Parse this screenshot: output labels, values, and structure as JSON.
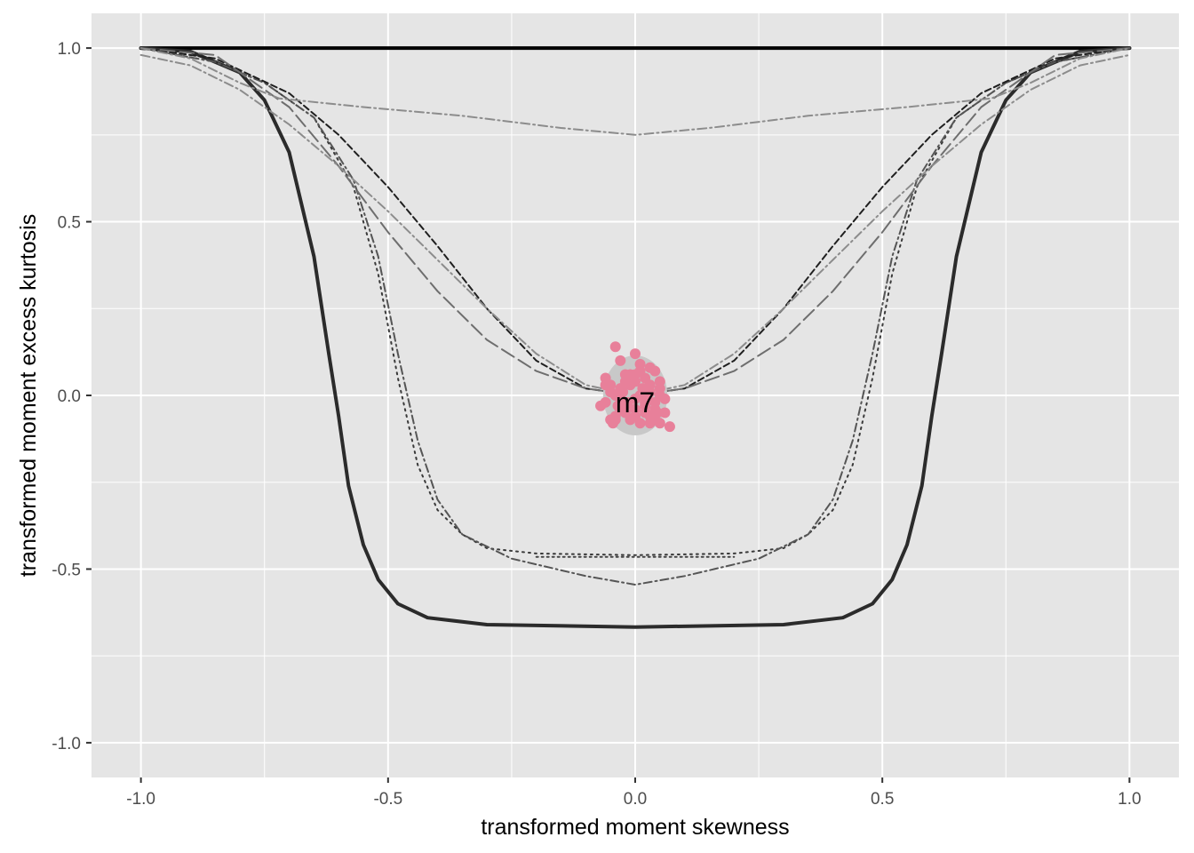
{
  "chart_data": {
    "type": "line",
    "title": "",
    "xlabel": "transformed moment skewness",
    "ylabel": "transformed moment excess kurtosis",
    "xlim": [
      -1.1,
      1.1
    ],
    "ylim": [
      -1.1,
      1.1
    ],
    "x_ticks": [
      -1.0,
      -0.5,
      0.0,
      0.5,
      1.0
    ],
    "x_tick_labels": [
      "-1.0",
      "-0.5",
      "0.0",
      "0.5",
      "1.0"
    ],
    "y_ticks": [
      1.0,
      0.5,
      0.0,
      -0.5,
      -1.0
    ],
    "y_tick_labels": [
      "1.0",
      "0.5",
      "0.0",
      "-0.5",
      "-1.0"
    ],
    "grid": true,
    "background": "#e5e5e5",
    "point_color": "#e8809a",
    "series": [
      {
        "style": "solid-thick",
        "color": "#000000",
        "x": [
          -1.0,
          1.0
        ],
        "y": [
          1.0,
          1.0
        ]
      },
      {
        "style": "solid-thick",
        "color": "#2b2b2b",
        "x": [
          -1.0,
          -0.9,
          -0.8,
          -0.75,
          -0.7,
          -0.65,
          -0.62,
          -0.6,
          -0.58,
          -0.55,
          -0.52,
          -0.48,
          -0.42,
          -0.3,
          0.0,
          0.3,
          0.42,
          0.48,
          0.52,
          0.55,
          0.58,
          0.6,
          0.62,
          0.65,
          0.7,
          0.75,
          0.8,
          0.9,
          1.0
        ],
        "y": [
          1.0,
          0.99,
          0.93,
          0.85,
          0.7,
          0.4,
          0.12,
          -0.06,
          -0.26,
          -0.43,
          -0.53,
          -0.6,
          -0.64,
          -0.66,
          -0.667,
          -0.66,
          -0.64,
          -0.6,
          -0.53,
          -0.43,
          -0.26,
          -0.06,
          0.12,
          0.4,
          0.7,
          0.85,
          0.93,
          0.99,
          1.0
        ]
      },
      {
        "style": "dotted",
        "color": "#3a3a3a",
        "x": [
          -1.0,
          -0.85,
          -0.75,
          -0.65,
          -0.57,
          -0.52,
          -0.48,
          -0.44,
          -0.4,
          -0.35,
          -0.3,
          -0.2,
          0.0,
          0.2,
          0.3,
          0.35,
          0.4,
          0.44,
          0.48,
          0.52,
          0.57,
          0.65,
          0.75,
          0.85,
          1.0
        ],
        "y": [
          1.0,
          0.96,
          0.9,
          0.8,
          0.6,
          0.35,
          0.05,
          -0.2,
          -0.33,
          -0.4,
          -0.44,
          -0.455,
          -0.46,
          -0.455,
          -0.44,
          -0.4,
          -0.33,
          -0.2,
          0.05,
          0.35,
          0.6,
          0.8,
          0.9,
          0.96,
          1.0
        ]
      },
      {
        "style": "dashdot",
        "color": "#555555",
        "x": [
          -1.0,
          -0.85,
          -0.75,
          -0.65,
          -0.57,
          -0.52,
          -0.48,
          -0.44,
          -0.4,
          -0.35,
          -0.25,
          -0.1,
          0.0,
          0.1,
          0.25,
          0.35,
          0.4,
          0.44,
          0.48,
          0.52,
          0.57,
          0.65,
          0.75,
          0.85,
          1.0
        ],
        "y": [
          1.0,
          0.96,
          0.9,
          0.8,
          0.62,
          0.4,
          0.12,
          -0.13,
          -0.3,
          -0.4,
          -0.47,
          -0.52,
          -0.545,
          -0.52,
          -0.47,
          -0.4,
          -0.3,
          -0.13,
          0.12,
          0.4,
          0.62,
          0.8,
          0.9,
          0.96,
          1.0
        ]
      },
      {
        "style": "dotted-long",
        "color": "#444444",
        "x": [
          -0.2,
          0.0,
          0.2
        ],
        "y": [
          -0.465,
          -0.465,
          -0.465
        ]
      },
      {
        "style": "dashed",
        "color": "#1f1f1f",
        "x": [
          -1.0,
          -0.85,
          -0.7,
          -0.6,
          -0.5,
          -0.4,
          -0.3,
          -0.2,
          -0.1,
          0.0,
          0.1,
          0.2,
          0.3,
          0.4,
          0.5,
          0.6,
          0.7,
          0.85,
          1.0
        ],
        "y": [
          1.0,
          0.97,
          0.87,
          0.75,
          0.6,
          0.43,
          0.25,
          0.1,
          0.02,
          0.0,
          0.02,
          0.1,
          0.25,
          0.43,
          0.6,
          0.75,
          0.87,
          0.97,
          1.0
        ]
      },
      {
        "style": "longdash",
        "color": "#6e6e6e",
        "x": [
          -1.0,
          -0.85,
          -0.7,
          -0.6,
          -0.5,
          -0.4,
          -0.3,
          -0.2,
          -0.1,
          0.0,
          0.1,
          0.2,
          0.3,
          0.4,
          0.5,
          0.6,
          0.7,
          0.85,
          1.0
        ],
        "y": [
          1.0,
          0.98,
          0.83,
          0.66,
          0.47,
          0.3,
          0.16,
          0.07,
          0.02,
          0.0,
          0.02,
          0.07,
          0.16,
          0.3,
          0.47,
          0.66,
          0.83,
          0.98,
          1.0
        ]
      },
      {
        "style": "dashdot-light",
        "color": "#8c8c8c",
        "x": [
          -1.0,
          -0.9,
          -0.8,
          -0.7,
          -0.6,
          -0.5,
          -0.4,
          -0.3,
          -0.2,
          -0.1,
          0.0,
          0.1,
          0.2,
          0.3,
          0.4,
          0.5,
          0.6,
          0.7,
          0.8,
          0.9,
          1.0
        ],
        "y": [
          0.98,
          0.95,
          0.88,
          0.78,
          0.66,
          0.53,
          0.39,
          0.25,
          0.12,
          0.03,
          0.0,
          0.03,
          0.12,
          0.25,
          0.39,
          0.53,
          0.66,
          0.78,
          0.88,
          0.95,
          0.98
        ]
      },
      {
        "style": "dashdot-light",
        "color": "#8c8c8c",
        "x": [
          -1.0,
          -0.9,
          -0.8,
          -0.72,
          -0.55,
          -0.35,
          -0.15,
          0.0,
          0.15,
          0.35,
          0.55,
          0.72,
          0.8,
          0.9,
          1.0
        ],
        "y": [
          1.0,
          0.97,
          0.9,
          0.855,
          0.83,
          0.805,
          0.77,
          0.75,
          0.77,
          0.805,
          0.83,
          0.855,
          0.9,
          0.97,
          1.0
        ]
      }
    ],
    "ellipse": {
      "cx": 0.0,
      "cy": 0.0,
      "rx": 0.065,
      "ry": 0.115,
      "color": "#c8c8c8"
    },
    "points": {
      "x": [
        -0.04,
        0.0,
        -0.06,
        -0.03,
        0.03,
        -0.02,
        0.01,
        0.04,
        -0.05,
        0.02,
        0.0,
        0.05,
        -0.01,
        -0.04,
        0.03,
        0.06,
        -0.06,
        0.01,
        -0.02,
        0.04,
        -0.03,
        0.02,
        0.0,
        -0.05,
        0.05,
        -0.01,
        0.03,
        -0.07,
        0.07,
        0.01,
        -0.02,
        0.04,
        -0.04,
        0.02,
        0.0,
        0.06,
        -0.03,
        0.03,
        -0.01,
        0.05,
        -0.05,
        0.01,
        0.02,
        -0.02,
        0.04,
        0.0,
        -0.06,
        0.05,
        0.03,
        -0.03,
        -0.04,
        0.015,
        -0.015,
        0.025,
        -0.025,
        0.035,
        -0.035,
        0.045,
        -0.045,
        0.0
      ],
      "y": [
        0.14,
        0.12,
        0.05,
        0.1,
        0.08,
        0.06,
        0.09,
        0.07,
        0.03,
        0.05,
        0.04,
        0.02,
        0.03,
        0.0,
        0.01,
        -0.01,
        -0.02,
        0.0,
        -0.03,
        -0.02,
        -0.04,
        -0.05,
        -0.06,
        -0.07,
        -0.08,
        -0.07,
        -0.06,
        -0.03,
        -0.09,
        -0.08,
        -0.05,
        -0.04,
        -0.06,
        -0.02,
        -0.01,
        -0.05,
        0.02,
        0.03,
        0.06,
        0.04,
        0.01,
        0.07,
        -0.03,
        0.04,
        -0.07,
        -0.04,
        0.03,
        0.0,
        -0.08,
        -0.01,
        -0.07,
        0.02,
        -0.02,
        0.0,
        0.01,
        -0.06,
        -0.03,
        -0.05,
        -0.08,
        0.06
      ]
    },
    "annotation": {
      "text": "m7",
      "x": 0.0,
      "y": -0.02
    }
  }
}
